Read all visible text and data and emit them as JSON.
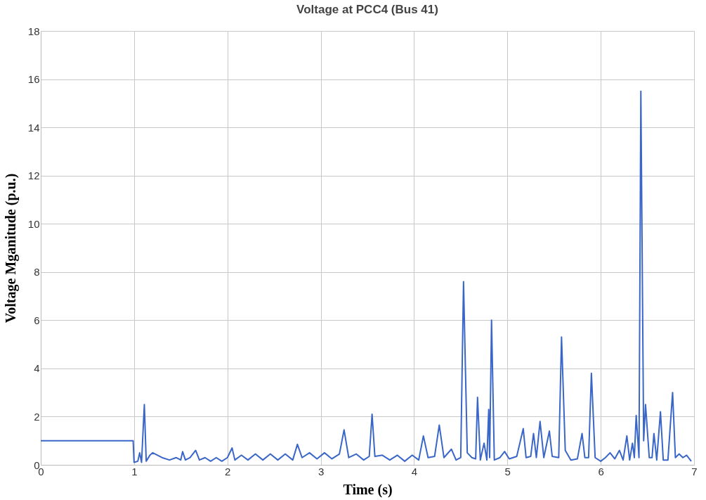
{
  "chart_data": {
    "type": "line",
    "title": "Voltage at PCC4 (Bus 41)",
    "xlabel": "Time (s)",
    "ylabel": "Voltage Mganitude (p.u.)",
    "xlim": [
      0,
      7
    ],
    "xticks": [
      0,
      1,
      2,
      3,
      4,
      5,
      6,
      7
    ],
    "ylim": [
      0,
      18
    ],
    "yticks": [
      0,
      2,
      4,
      6,
      8,
      10,
      12,
      14,
      16,
      18
    ],
    "grid": true,
    "series": [
      {
        "color": "#3a66c8",
        "x": [
          0,
          0.99,
          1.0,
          1.04,
          1.06,
          1.08,
          1.11,
          1.13,
          1.17,
          1.2,
          1.3,
          1.38,
          1.45,
          1.5,
          1.52,
          1.55,
          1.6,
          1.66,
          1.7,
          1.76,
          1.82,
          1.88,
          1.94,
          2.0,
          2.05,
          2.08,
          2.15,
          2.22,
          2.3,
          2.38,
          2.46,
          2.54,
          2.62,
          2.7,
          2.75,
          2.8,
          2.88,
          2.96,
          3.04,
          3.12,
          3.2,
          3.25,
          3.3,
          3.38,
          3.46,
          3.52,
          3.55,
          3.58,
          3.66,
          3.74,
          3.82,
          3.9,
          3.98,
          4.05,
          4.1,
          4.15,
          4.22,
          4.27,
          4.32,
          4.4,
          4.45,
          4.5,
          4.53,
          4.57,
          4.62,
          4.66,
          4.68,
          4.71,
          4.75,
          4.78,
          4.8,
          4.81,
          4.83,
          4.86,
          4.92,
          4.97,
          5.02,
          5.1,
          5.17,
          5.2,
          5.25,
          5.28,
          5.31,
          5.35,
          5.39,
          5.45,
          5.48,
          5.55,
          5.58,
          5.62,
          5.68,
          5.75,
          5.8,
          5.83,
          5.87,
          5.9,
          5.94,
          6.0,
          6.05,
          6.1,
          6.15,
          6.2,
          6.24,
          6.28,
          6.31,
          6.34,
          6.36,
          6.38,
          6.41,
          6.43,
          6.46,
          6.48,
          6.52,
          6.55,
          6.57,
          6.6,
          6.64,
          6.67,
          6.72,
          6.77,
          6.8,
          6.84,
          6.88,
          6.92,
          6.97
        ],
        "values": [
          1,
          1,
          0.1,
          0.15,
          0.5,
          0.1,
          2.5,
          0.15,
          0.4,
          0.5,
          0.3,
          0.2,
          0.3,
          0.2,
          0.55,
          0.2,
          0.3,
          0.6,
          0.2,
          0.3,
          0.15,
          0.3,
          0.15,
          0.3,
          0.7,
          0.2,
          0.4,
          0.2,
          0.45,
          0.2,
          0.45,
          0.2,
          0.45,
          0.2,
          0.85,
          0.3,
          0.5,
          0.25,
          0.5,
          0.25,
          0.45,
          1.45,
          0.3,
          0.45,
          0.2,
          0.35,
          2.1,
          0.35,
          0.4,
          0.2,
          0.4,
          0.15,
          0.4,
          0.2,
          1.2,
          0.3,
          0.35,
          1.65,
          0.3,
          0.65,
          0.2,
          0.3,
          7.6,
          0.5,
          0.3,
          0.25,
          2.8,
          0.2,
          0.9,
          0.2,
          2.3,
          0.3,
          6.0,
          0.2,
          0.3,
          0.55,
          0.25,
          0.35,
          1.5,
          0.3,
          0.35,
          1.3,
          0.3,
          1.8,
          0.3,
          1.4,
          0.35,
          0.3,
          5.3,
          0.6,
          0.2,
          0.25,
          1.3,
          0.3,
          0.3,
          3.8,
          0.3,
          0.15,
          0.3,
          0.5,
          0.25,
          0.6,
          0.2,
          1.2,
          0.2,
          0.9,
          0.3,
          2.05,
          0.3,
          15.5,
          1.0,
          2.5,
          0.3,
          0.3,
          1.3,
          0.2,
          2.2,
          0.2,
          0.2,
          3.0,
          0.3,
          0.45,
          0.3,
          0.4,
          0.15
        ]
      }
    ]
  }
}
